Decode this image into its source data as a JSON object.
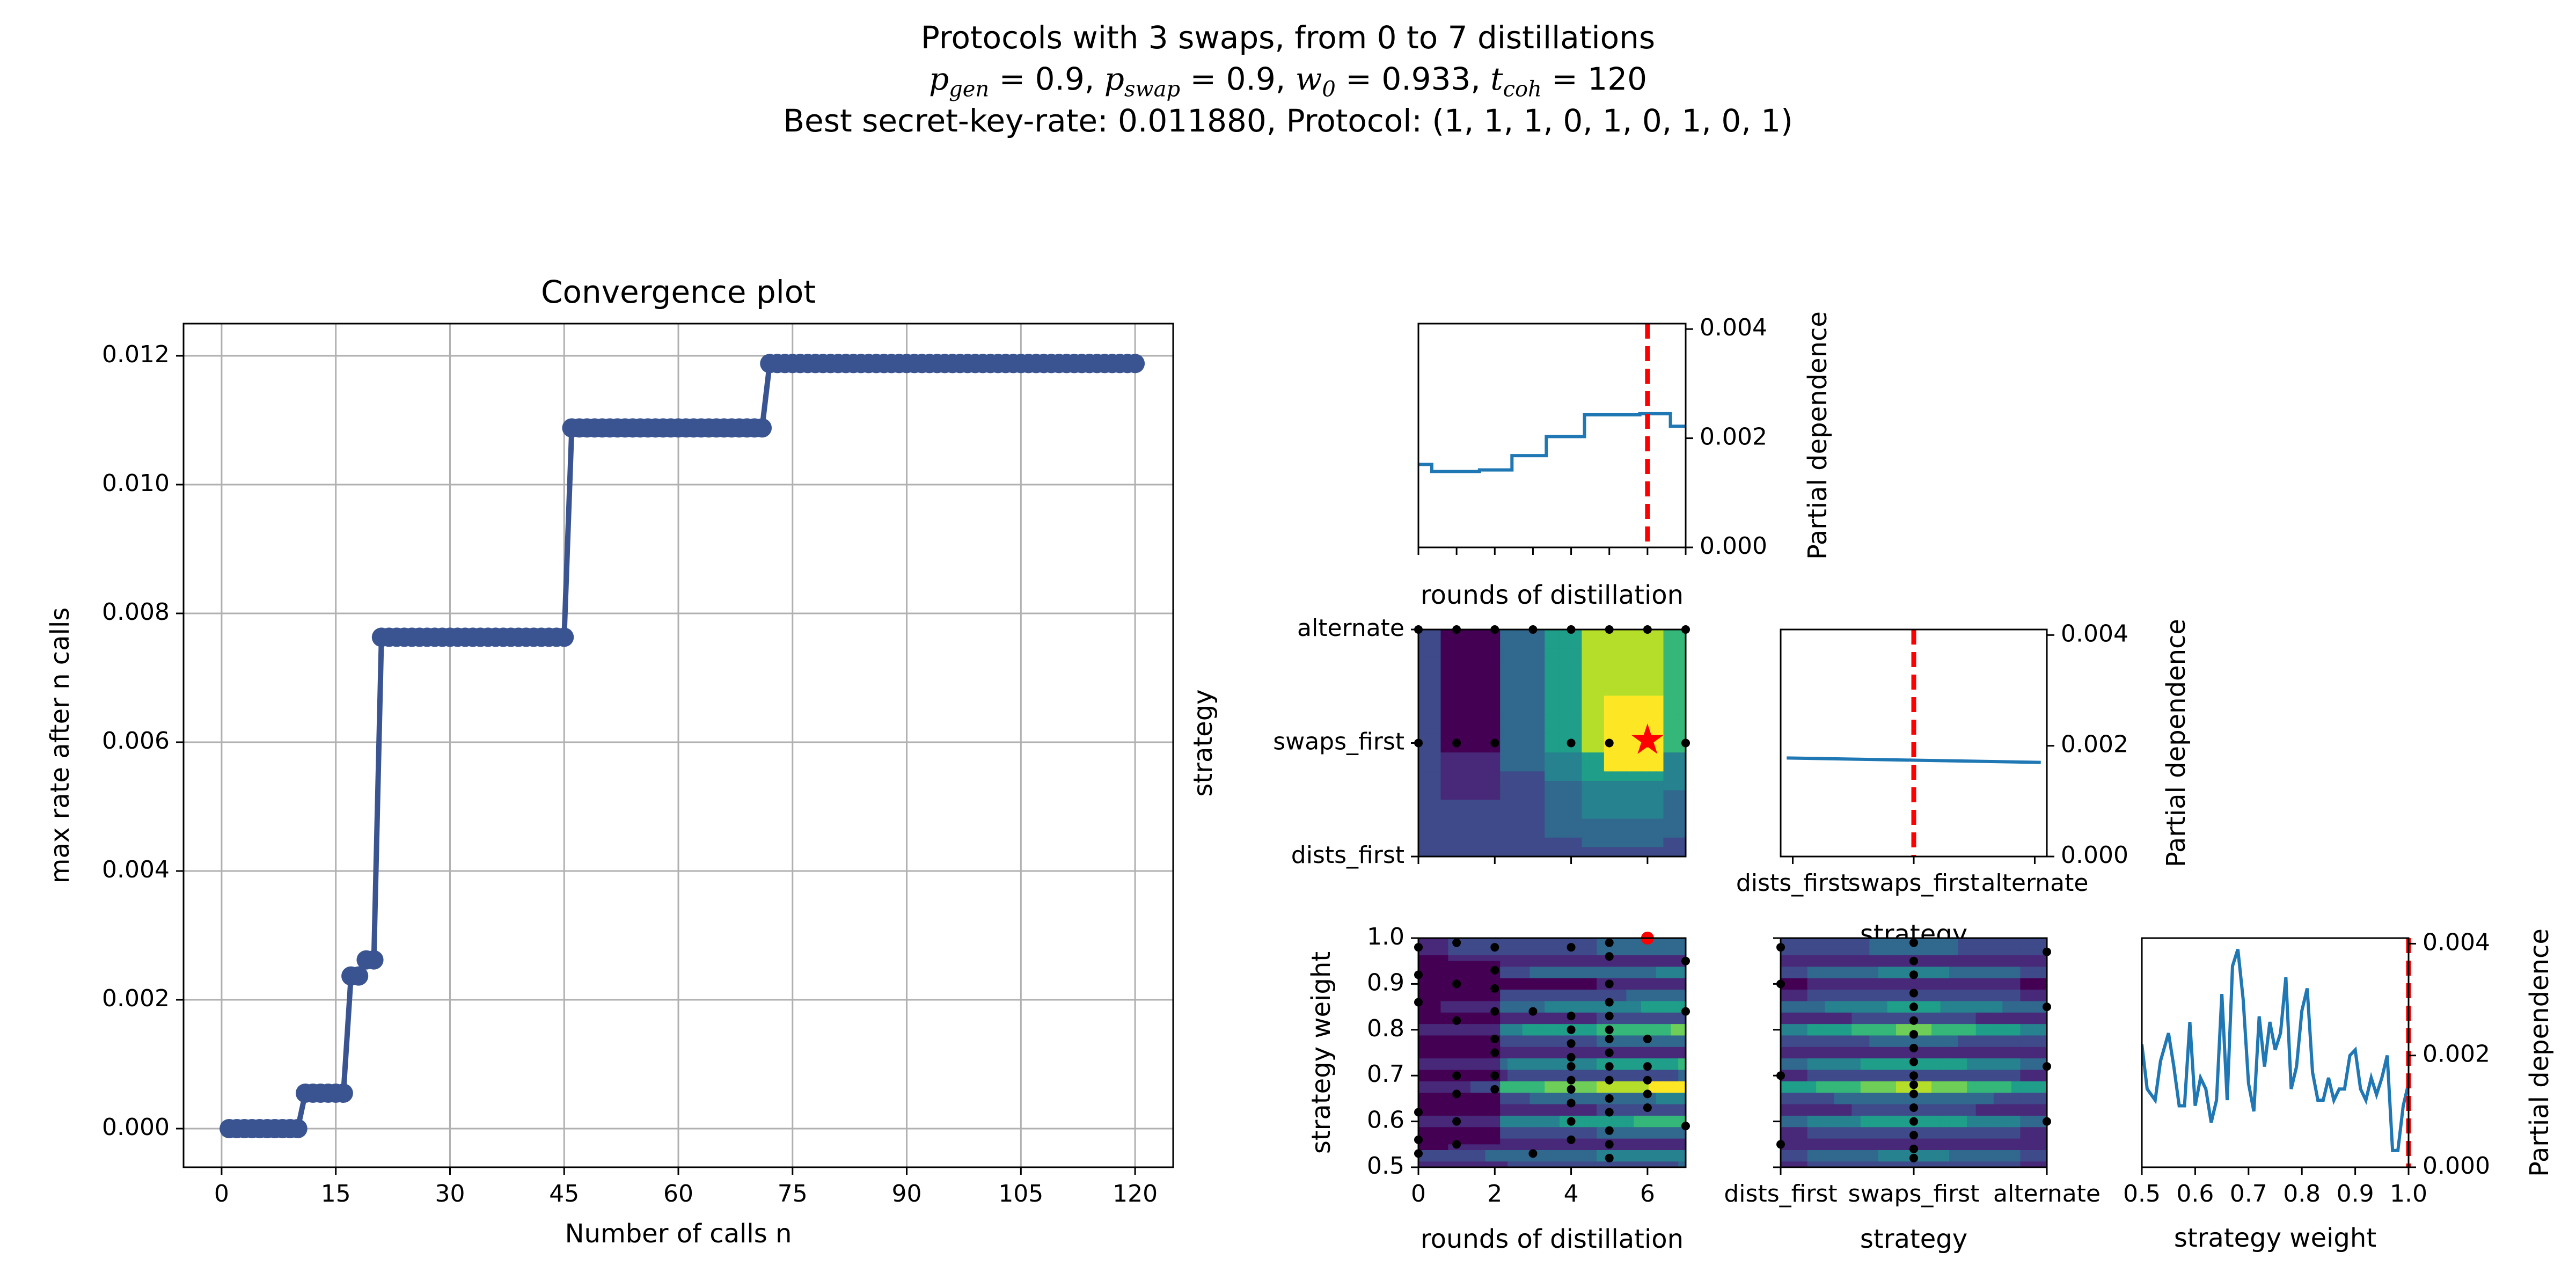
{
  "figure": {
    "title_line1": "Protocols with 3 swaps, from 0 to 7 distillations",
    "params": {
      "p_gen_symbol": "p",
      "p_gen_sub": "gen",
      "p_gen_value": "0.9",
      "p_swap_symbol": "p",
      "p_swap_sub": "swap",
      "p_swap_value": "0.9",
      "w0_symbol": "w",
      "w0_sub": "0",
      "w0_value": "0.933",
      "tcoh_symbol": "t",
      "tcoh_sub": "coh",
      "tcoh_value": "120"
    },
    "title_line3": "Best secret-key-rate: 0.011880, Protocol: (1, 1, 1, 0, 1, 0, 1, 0, 1)"
  },
  "colors": {
    "convergence": "#3a5491",
    "pd_line": "#1f77b4",
    "best_marker": "#ff0000",
    "grid": "#b0b0b0"
  },
  "chart_data": [
    {
      "type": "line",
      "panel": "convergence",
      "title": "Convergence plot",
      "xlabel": "Number of calls n",
      "ylabel": "max rate after n calls",
      "xlim": [
        -5,
        125
      ],
      "ylim": [
        -0.0006,
        0.0125
      ],
      "xticks": [
        0,
        15,
        30,
        45,
        60,
        75,
        90,
        105,
        120
      ],
      "yticks": [
        0.0,
        0.002,
        0.004,
        0.006,
        0.008,
        0.01,
        0.012
      ],
      "ytick_labels": [
        "0.000",
        "0.002",
        "0.004",
        "0.006",
        "0.008",
        "0.010",
        "0.012"
      ],
      "grid": true,
      "steps": [
        {
          "from": 1,
          "to": 10,
          "value": 0.0
        },
        {
          "from": 11,
          "to": 16,
          "value": 0.00055
        },
        {
          "from": 17,
          "to": 18,
          "value": 0.00237
        },
        {
          "from": 19,
          "to": 20,
          "value": 0.00262
        },
        {
          "from": 21,
          "to": 45,
          "value": 0.00763
        },
        {
          "from": 46,
          "to": 71,
          "value": 0.01088
        },
        {
          "from": 72,
          "to": 120,
          "value": 0.01188
        }
      ]
    },
    {
      "type": "line",
      "panel": "pd_rounds",
      "xlabel": "rounds of distillation",
      "ylabel": "Partial dependence",
      "xlim": [
        0,
        7
      ],
      "ylim": [
        0,
        0.0041
      ],
      "yticks": [
        0.0,
        0.002,
        0.004
      ],
      "ytick_labels": [
        "0.000",
        "0.002",
        "0.004"
      ],
      "marker_x": 6,
      "x": [
        0,
        0.35,
        0.35,
        1.6,
        1.6,
        2.45,
        2.45,
        3.35,
        3.35,
        4.35,
        4.35,
        5.8,
        5.8,
        6.6,
        6.6,
        7
      ],
      "y": [
        0.00152,
        0.00152,
        0.00139,
        0.00139,
        0.00142,
        0.00142,
        0.00168,
        0.00168,
        0.00203,
        0.00203,
        0.00243,
        0.00243,
        0.00245,
        0.00245,
        0.00222,
        0.00222
      ]
    },
    {
      "type": "line",
      "panel": "pd_strategy",
      "xlabel": "strategy",
      "ylabel": "Partial dependence",
      "categories": [
        "dists_first",
        "swaps_first",
        "alternate"
      ],
      "ylim": [
        0,
        0.0041
      ],
      "yticks": [
        0.0,
        0.002,
        0.004
      ],
      "ytick_labels": [
        "0.000",
        "0.002",
        "0.004"
      ],
      "marker_category": "swaps_first",
      "x": [
        -0.05,
        1.0,
        2.05
      ],
      "y": [
        0.00178,
        0.00174,
        0.0017
      ]
    },
    {
      "type": "line",
      "panel": "pd_weight",
      "xlabel": "strategy weight",
      "ylabel": "Partial dependence",
      "xlim": [
        0.5,
        1.0
      ],
      "xticks": [
        0.5,
        0.6,
        0.7,
        0.8,
        0.9,
        1.0
      ],
      "xtick_labels": [
        "0.5",
        "0.6",
        "0.7",
        "0.8",
        "0.9",
        "1.0"
      ],
      "ylim": [
        0,
        0.0041
      ],
      "yticks": [
        0.0,
        0.002,
        0.004
      ],
      "ytick_labels": [
        "0.000",
        "0.002",
        "0.004"
      ],
      "marker_x": 1.0,
      "x": [
        0.5,
        0.51,
        0.525,
        0.535,
        0.55,
        0.56,
        0.57,
        0.58,
        0.59,
        0.6,
        0.61,
        0.62,
        0.63,
        0.64,
        0.65,
        0.66,
        0.67,
        0.68,
        0.69,
        0.7,
        0.71,
        0.72,
        0.73,
        0.74,
        0.75,
        0.76,
        0.77,
        0.78,
        0.79,
        0.8,
        0.81,
        0.82,
        0.83,
        0.84,
        0.85,
        0.86,
        0.87,
        0.88,
        0.89,
        0.9,
        0.91,
        0.92,
        0.93,
        0.94,
        0.95,
        0.96,
        0.97,
        0.98,
        0.99,
        1.0
      ],
      "y": [
        0.0022,
        0.0014,
        0.0012,
        0.0019,
        0.0024,
        0.0018,
        0.0011,
        0.0011,
        0.0026,
        0.0011,
        0.0016,
        0.0014,
        0.0008,
        0.0012,
        0.0031,
        0.0012,
        0.0036,
        0.0039,
        0.003,
        0.0015,
        0.001,
        0.0027,
        0.0018,
        0.0026,
        0.0021,
        0.0024,
        0.0034,
        0.0014,
        0.0018,
        0.0028,
        0.0032,
        0.0017,
        0.0012,
        0.0012,
        0.0016,
        0.0012,
        0.0014,
        0.0014,
        0.002,
        0.0021,
        0.0014,
        0.0012,
        0.0016,
        0.0013,
        0.0016,
        0.002,
        0.0003,
        0.0003,
        0.0011,
        0.0015
      ]
    },
    {
      "type": "heatmap",
      "panel": "contour_strategy_vs_rounds",
      "xlabel": "",
      "ylabel": "strategy",
      "x_range": [
        0,
        7
      ],
      "y_categories": [
        "dists_first",
        "swaps_first",
        "alternate"
      ],
      "best": {
        "x": 6,
        "y": "swaps_first"
      },
      "samples_y_swaps_first_x": [
        0,
        1,
        2,
        4,
        5,
        6,
        7
      ],
      "samples_y_alternate_x": [
        0,
        1,
        2,
        3,
        4,
        5,
        6,
        7
      ]
    },
    {
      "type": "heatmap",
      "panel": "contour_weight_vs_rounds",
      "xlabel": "rounds of distillation",
      "ylabel": "strategy weight",
      "xlim": [
        0,
        7
      ],
      "xticks": [
        0,
        2,
        4,
        6
      ],
      "ylim": [
        0.5,
        1.0
      ],
      "yticks": [
        0.5,
        0.6,
        0.7,
        0.8,
        0.9,
        1.0
      ],
      "ytick_labels": [
        "0.5",
        "0.6",
        "0.7",
        "0.8",
        "0.9",
        "1.0"
      ],
      "best": {
        "x": 6,
        "y": 1.0
      }
    },
    {
      "type": "heatmap",
      "panel": "contour_weight_vs_strategy",
      "xlabel": "strategy",
      "ylabel": "",
      "x_categories": [
        "dists_first",
        "swaps_first",
        "alternate"
      ],
      "ylim": [
        0.5,
        1.0
      ]
    }
  ]
}
